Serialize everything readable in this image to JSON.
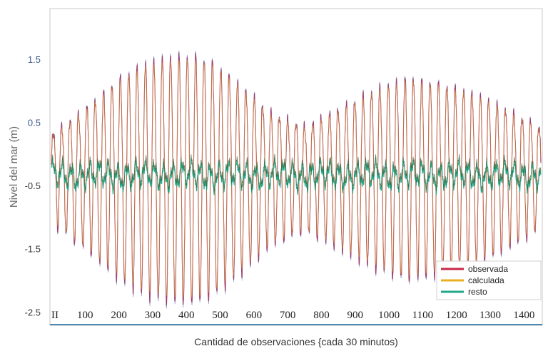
{
  "chart_data": {
    "type": "line",
    "title": "",
    "xlabel": "Cantidad de observaciones {cada 30 minutos)",
    "ylabel": "Nivel del mar (m)",
    "xlim": [
      0,
      1450
    ],
    "ylim": [
      -2.7,
      2.3
    ],
    "x_tick_labels": [
      "II",
      "100",
      "200",
      "300",
      "400",
      "500",
      "600",
      "700",
      "800",
      "900",
      "1000",
      "1100",
      "1200",
      "1300",
      "1400"
    ],
    "x_tick_values": [
      0,
      100,
      200,
      300,
      400,
      500,
      600,
      700,
      800,
      900,
      1000,
      1100,
      1200,
      1300,
      1400
    ],
    "y_tick_labels": [
      "1.5",
      "0.5",
      "-0.5",
      "-1.5",
      "-2.5"
    ],
    "y_tick_values": [
      1.5,
      0.5,
      -0.5,
      -1.5,
      -2.5
    ],
    "legend_position": "bottom-right",
    "series": [
      {
        "name": "observada",
        "color": "#c8284a",
        "period_obs": 24.8,
        "mean": -0.3,
        "envelope_x": [
          0,
          50,
          120,
          200,
          280,
          360,
          430,
          480,
          560,
          650,
          750,
          850,
          950,
          1050,
          1120,
          1200,
          1280,
          1350,
          1450
        ],
        "envelope_amplitude": [
          0.7,
          0.9,
          1.2,
          1.6,
          1.85,
          1.95,
          1.95,
          1.85,
          1.5,
          1.05,
          0.82,
          1.1,
          1.4,
          1.6,
          1.55,
          1.45,
          1.3,
          1.1,
          0.8
        ]
      },
      {
        "name": "calculada",
        "color": "#e8b020",
        "note_value": "approximates observada"
      },
      {
        "name": "resto",
        "color": "#20a888",
        "mean": -0.35,
        "amplitude": 0.15
      }
    ]
  }
}
